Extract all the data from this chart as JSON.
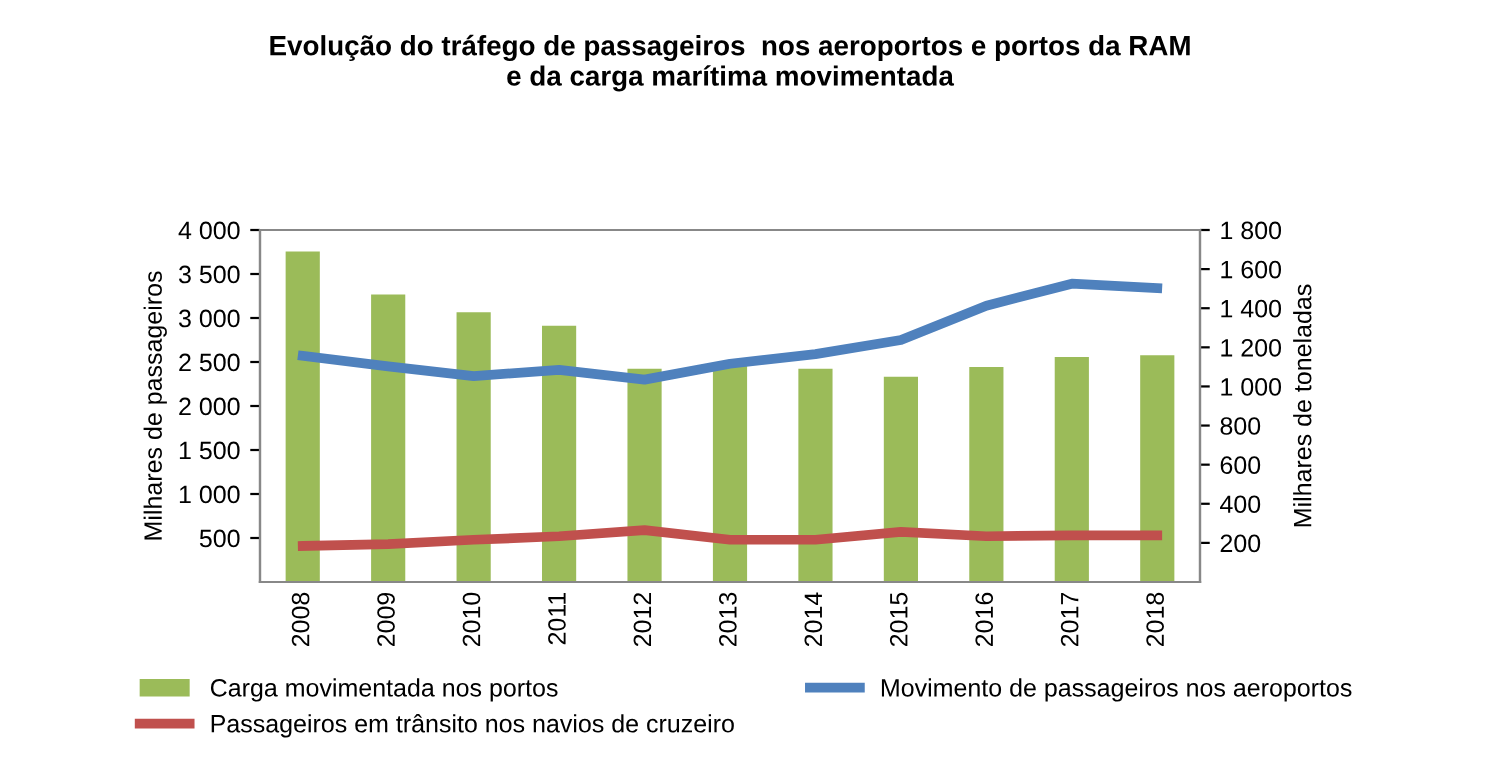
{
  "chart_data": {
    "type": "bar",
    "title": "Evolução do tráfego de passageiros  nos aeroportos e portos da RAM\ne da carga marítima movimentada",
    "ylabel": "Milhares de passageiros",
    "y2label": "Milhares de toneladas",
    "categories": [
      "2008",
      "2009",
      "2010",
      "2011",
      "2012",
      "2013",
      "2014",
      "2015",
      "2016",
      "2017",
      "2018"
    ],
    "series": [
      {
        "name": "Carga movimentada nos portos",
        "axis": "y2",
        "color": "#9bbb59",
        "values": [
          1690,
          1470,
          1380,
          1310,
          1090,
          1120,
          1090,
          1050,
          1100,
          1150,
          1160
        ]
      },
      {
        "name": "Movimento de passageiros nos aeroportos",
        "type": "line",
        "color": "#4f81bd",
        "values": [
          2570,
          2450,
          2340,
          2410,
          2300,
          2480,
          2590,
          2750,
          3140,
          3390,
          3340
        ]
      },
      {
        "name": "Passageiros em trânsito nos navios de cruzeiro",
        "type": "line",
        "color": "#c0504d",
        "values": [
          410,
          430,
          480,
          520,
          590,
          480,
          480,
          570,
          520,
          530,
          530
        ]
      }
    ],
    "ylim": [
      0,
      4000
    ],
    "yticks": [
      {
        "value": 500,
        "label": "500"
      },
      {
        "value": 1000,
        "label": "1 000"
      },
      {
        "value": 1500,
        "label": "1 500"
      },
      {
        "value": 2000,
        "label": "2 000"
      },
      {
        "value": 2500,
        "label": "2 500"
      },
      {
        "value": 3000,
        "label": "3 000"
      },
      {
        "value": 3500,
        "label": "3 500"
      },
      {
        "value": 4000,
        "label": "4 000"
      }
    ],
    "y2lim": [
      0,
      1800
    ],
    "y2ticks": [
      {
        "value": 200,
        "label": "200"
      },
      {
        "value": 400,
        "label": "400"
      },
      {
        "value": 600,
        "label": "600"
      },
      {
        "value": 800,
        "label": "800"
      },
      {
        "value": 1000,
        "label": "1 000"
      },
      {
        "value": 1200,
        "label": "1 200"
      },
      {
        "value": 1400,
        "label": "1 400"
      },
      {
        "value": 1600,
        "label": "1 600"
      },
      {
        "value": 1800,
        "label": "1 800"
      }
    ],
    "grid": false,
    "legend": "bottom",
    "marker": "none",
    "line_style": "solid"
  }
}
